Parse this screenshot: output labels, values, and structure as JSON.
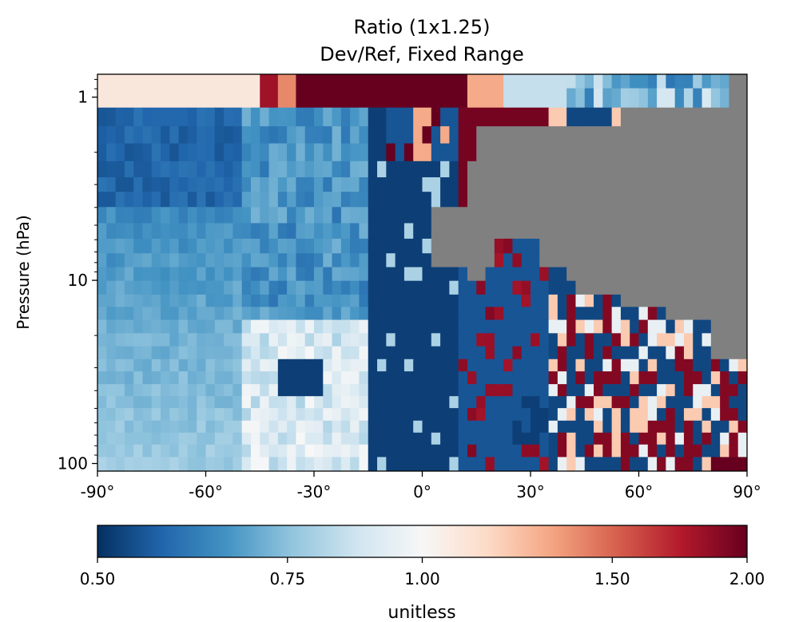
{
  "chart_data": {
    "type": "heatmap",
    "title_line1": "Ratio (1x1.25)",
    "title_line2": "Dev/Ref, Fixed Range",
    "xlabel": "",
    "ylabel": "Pressure (hPa)",
    "x_range": [
      -90,
      90
    ],
    "y_range_hpa": [
      110,
      0.75
    ],
    "y_scale": "log",
    "x_ticks": [
      {
        "value": -90,
        "label": "-90°"
      },
      {
        "value": -60,
        "label": "-60°"
      },
      {
        "value": -30,
        "label": "-30°"
      },
      {
        "value": 0,
        "label": "0°"
      },
      {
        "value": 30,
        "label": "30°"
      },
      {
        "value": 60,
        "label": "60°"
      },
      {
        "value": 90,
        "label": "90°"
      }
    ],
    "y_ticks": [
      {
        "value": 1,
        "label": "1"
      },
      {
        "value": 10,
        "label": "10"
      },
      {
        "value": 100,
        "label": "100"
      }
    ],
    "colorbar": {
      "label": "unitless",
      "min": 0.5,
      "max": 2.0,
      "scale": "log",
      "ticks": [
        {
          "value": 0.5,
          "label": "0.50"
        },
        {
          "value": 0.75,
          "label": "0.75"
        },
        {
          "value": 1.0,
          "label": "1.00"
        },
        {
          "value": 1.5,
          "label": "1.50"
        },
        {
          "value": 2.0,
          "label": "2.00"
        }
      ],
      "colormap": [
        "#053061",
        "#2166ac",
        "#4393c3",
        "#92c5de",
        "#d1e5f0",
        "#f7f7f7",
        "#fddbc7",
        "#f4a582",
        "#d6604d",
        "#b2182b",
        "#67001f"
      ]
    },
    "masked_color": "#808080",
    "latitudes_approx": "-90 to 90, 1.25° spacing",
    "approx_field_description_rows_top_to_bottom": [
      {
        "level_hpa": 0.85,
        "segments": [
          [
            -90,
            -45,
            1.1
          ],
          [
            -45,
            -40,
            1.8
          ],
          [
            -40,
            -35,
            1.4
          ],
          [
            -35,
            12,
            2.0
          ],
          [
            12,
            22,
            1.3
          ],
          [
            22,
            40,
            0.8
          ],
          [
            40,
            78,
            0.6
          ],
          [
            78,
            84,
            0.9
          ],
          [
            84,
            90,
            "masked"
          ]
        ]
      }
    ]
  }
}
